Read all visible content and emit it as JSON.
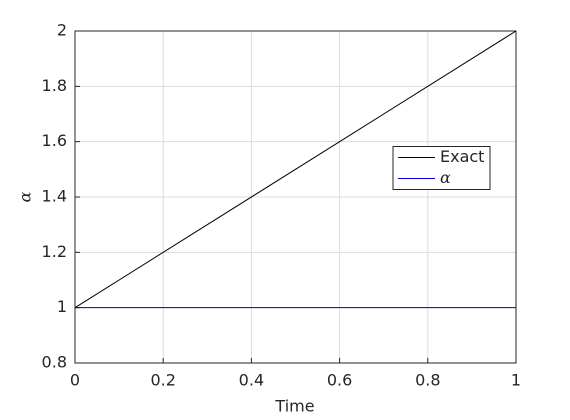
{
  "chart_data": {
    "type": "line",
    "x_label": "Time",
    "y_label": "α",
    "x": [
      0,
      1
    ],
    "series": [
      {
        "name": "Exact",
        "color": "#000000",
        "values": [
          1,
          2
        ]
      },
      {
        "name": "α",
        "color": "#0000cc",
        "values": [
          1,
          1
        ]
      }
    ],
    "xlim": [
      0,
      1
    ],
    "xticks": [
      0,
      0.2,
      0.4,
      0.6,
      0.8,
      1
    ],
    "ylim": [
      0.8,
      2
    ],
    "yticks": [
      0.8,
      1,
      1.2,
      1.4,
      1.6,
      1.8,
      2
    ],
    "grid": true,
    "legend": "east"
  }
}
